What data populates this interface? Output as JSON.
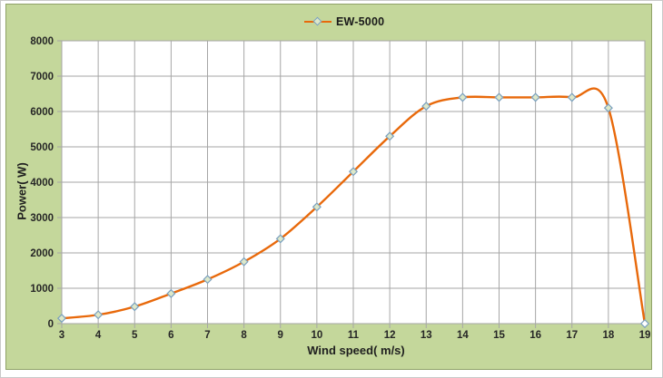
{
  "legend": {
    "label": "EW-5000",
    "position": "top-center"
  },
  "axes": {
    "x_title": "Wind speed( m/s)",
    "y_title": "Power( W)"
  },
  "chart_data": {
    "type": "line",
    "title": "",
    "smooth": true,
    "grid": true,
    "legend_position": "top-center",
    "xlabel": "Wind speed( m/s)",
    "ylabel": "Power( W)",
    "xlim": [
      3,
      19
    ],
    "ylim": [
      0,
      8000
    ],
    "x_ticks": [
      3,
      4,
      5,
      6,
      7,
      8,
      9,
      10,
      11,
      12,
      13,
      14,
      15,
      16,
      17,
      18,
      19
    ],
    "y_ticks": [
      0,
      1000,
      2000,
      3000,
      4000,
      5000,
      6000,
      7000,
      8000
    ],
    "series": [
      {
        "name": "EW-5000",
        "marker": "diamond",
        "x": [
          3,
          4,
          5,
          6,
          7,
          8,
          9,
          10,
          11,
          12,
          13,
          14,
          15,
          16,
          17,
          18,
          19
        ],
        "values": [
          150,
          250,
          480,
          850,
          1250,
          1750,
          2400,
          3300,
          4300,
          5300,
          6150,
          6400,
          6400,
          6400,
          6400,
          6100,
          0
        ]
      }
    ],
    "colors": {
      "series_line": "#e8690b",
      "marker_fill": "#dde8c9",
      "end_marker_fill": "#ffffff",
      "marker_stroke": "#7aa0bf",
      "plot_bg": "#ffffff",
      "outer_bg": "#c4d79b",
      "panel_border": "#8fa168",
      "gridline": "#a6a6a6",
      "tick_text": "#262626"
    }
  }
}
